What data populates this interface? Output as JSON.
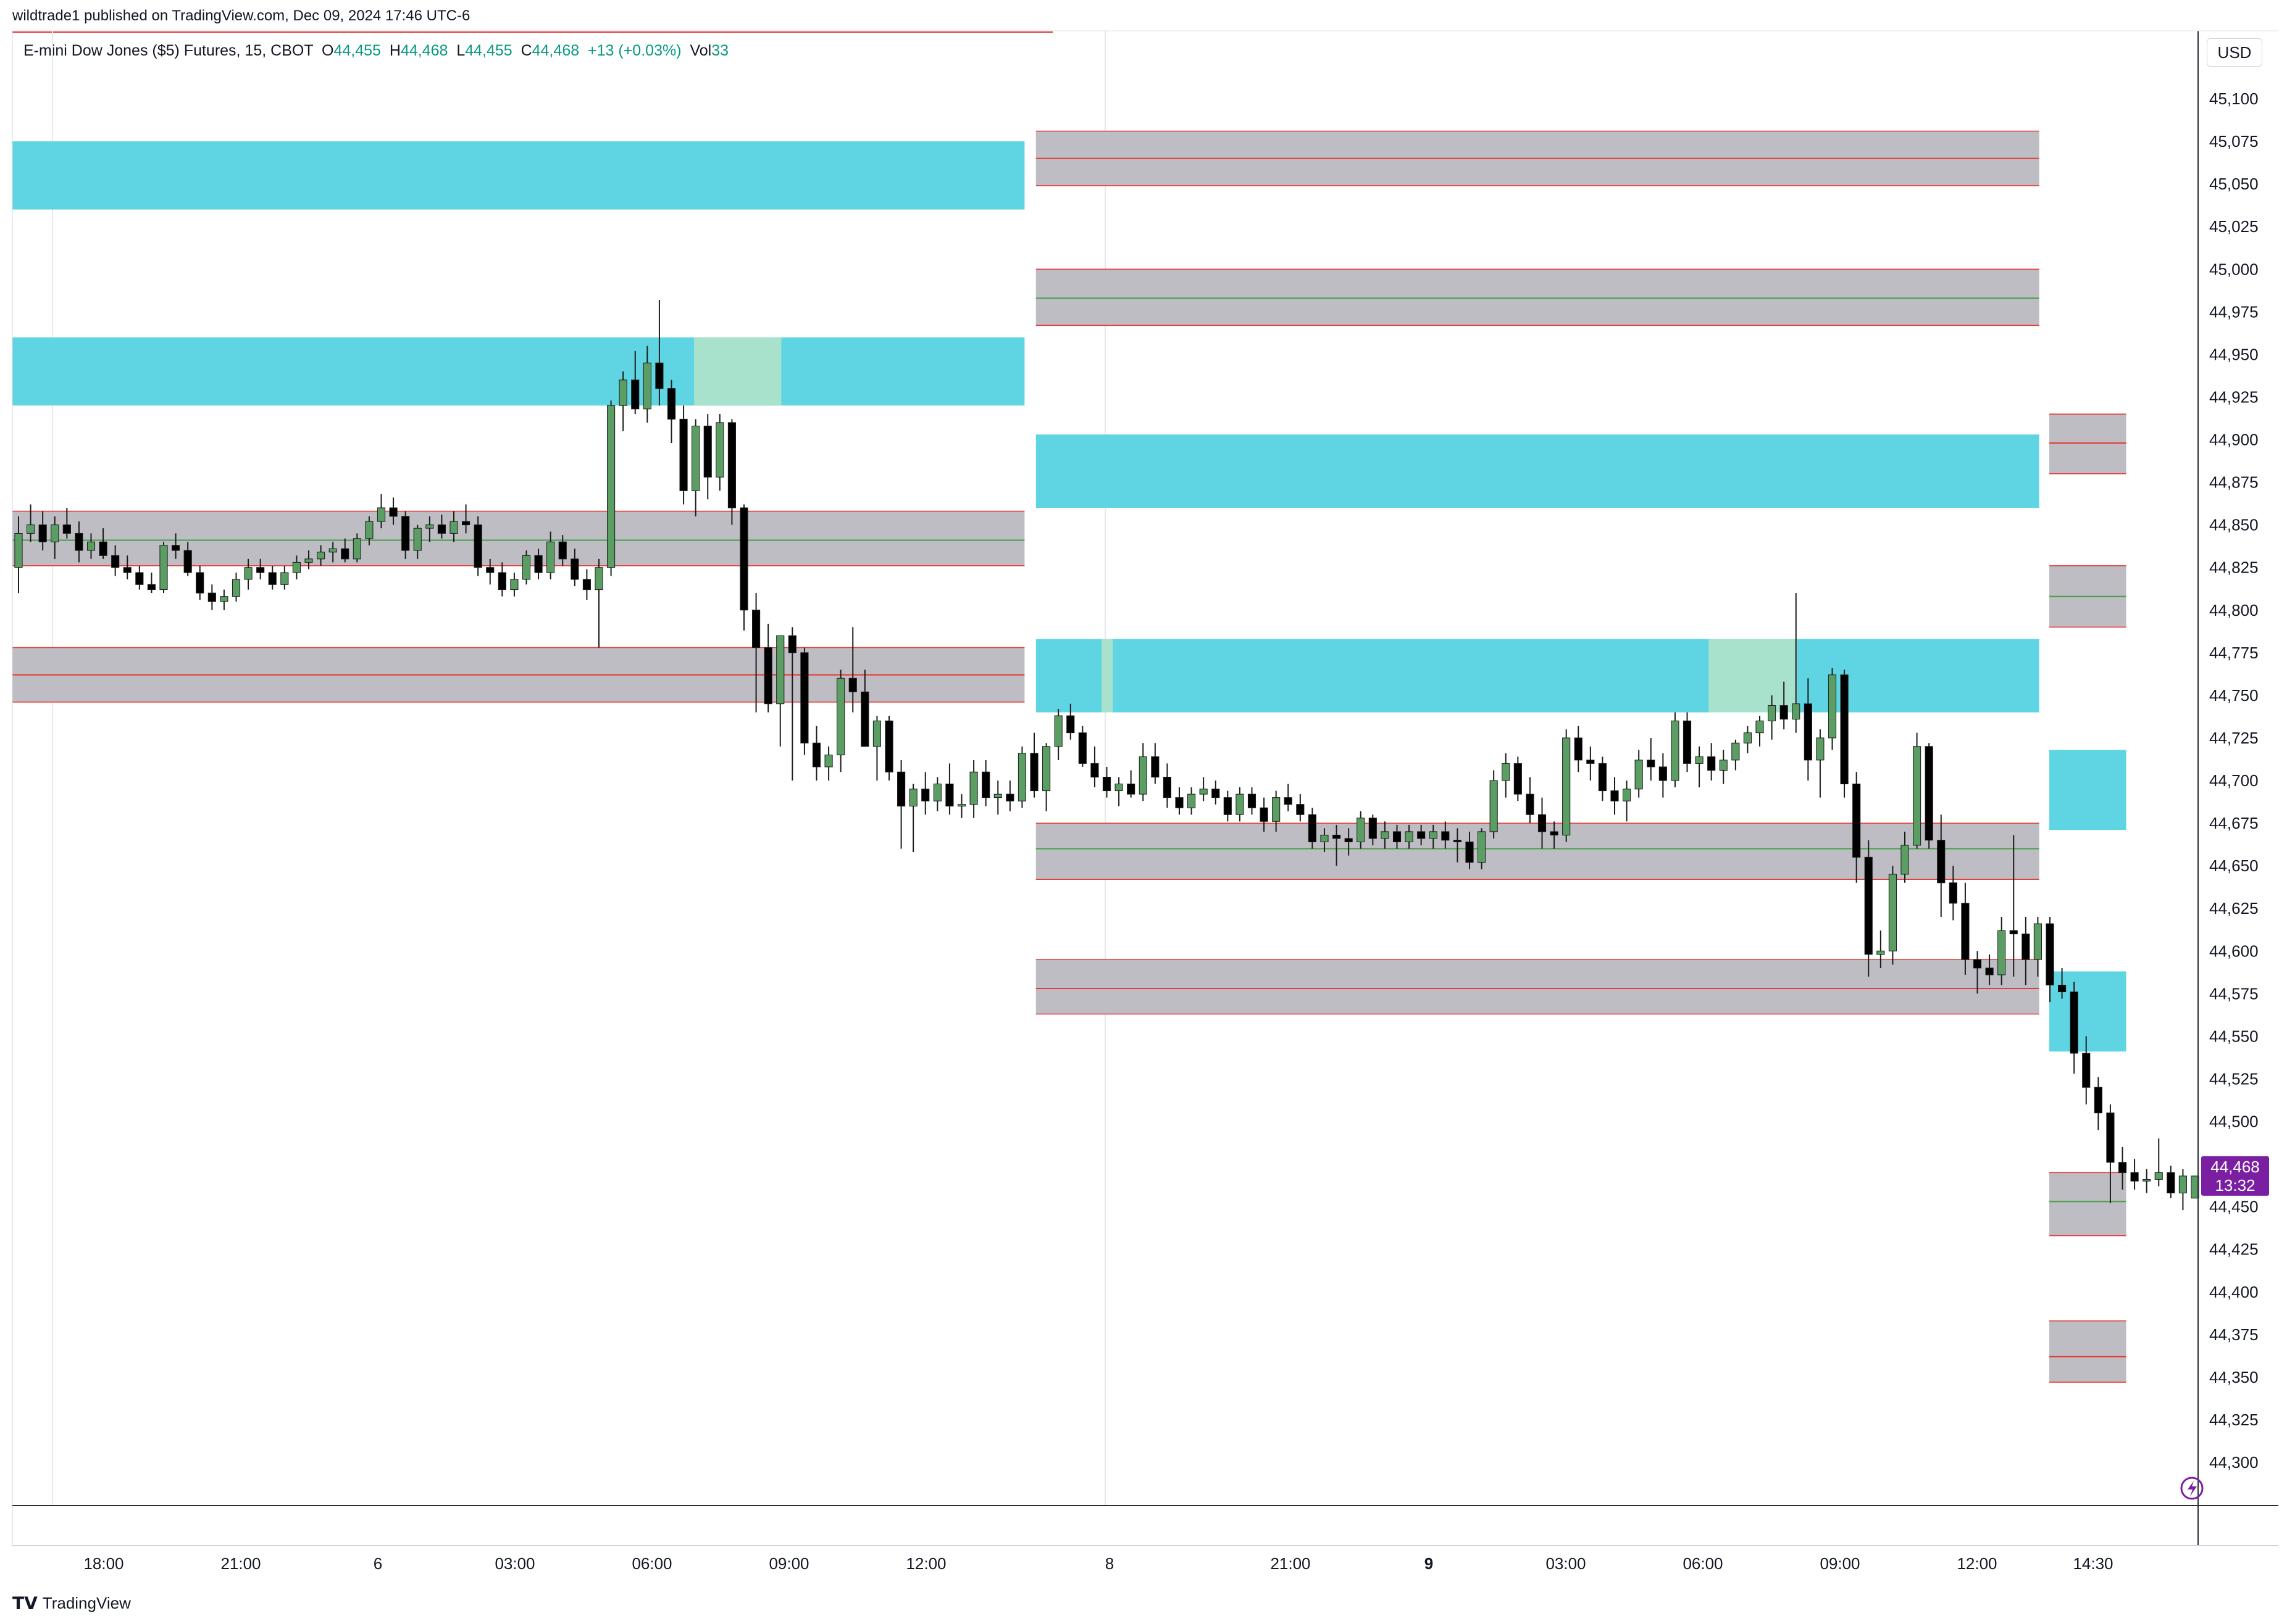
{
  "header": {
    "published": "wildtrade1 published on TradingView.com, Dec 09, 2024 17:46 UTC-6",
    "symbol": "E-mini Dow Jones ($5) Futures, 15, CBOT",
    "o_label": "O",
    "o_value": "44,455",
    "h_label": "H",
    "h_value": "44,468",
    "l_label": "L",
    "l_value": "44,455",
    "c_label": "C",
    "c_value": "44,468",
    "change": "+13 (+0.03%)",
    "vol_label": "Vol",
    "vol_value": "33"
  },
  "currency_button": "USD",
  "price_badge": {
    "price": "44,468",
    "countdown": "13:32",
    "color": "#7b1fa2"
  },
  "footer": {
    "brand": "TradingView"
  },
  "colors": {
    "up": "#5b9e63",
    "down": "#000000",
    "cyan_zone": "#5fd5e3",
    "gray_zone": "#bdbdc3",
    "red_line": "#e53935",
    "green_line": "#43a047",
    "highlight": "#a8e2cc"
  },
  "chart_data": {
    "type": "candlestick",
    "symbol": "E-mini Dow Jones ($5) Futures",
    "interval": "15",
    "ylim": [
      44275,
      45125
    ],
    "y_ticks": [
      "45,100",
      "45,075",
      "45,050",
      "45,025",
      "45,000",
      "44,975",
      "44,950",
      "44,925",
      "44,900",
      "44,875",
      "44,850",
      "44,825",
      "44,800",
      "44,775",
      "44,750",
      "44,725",
      "44,700",
      "44,675",
      "44,650",
      "44,625",
      "44,600",
      "44,575",
      "44,550",
      "44,525",
      "44,500",
      "44,475",
      "44,450",
      "44,425",
      "44,400",
      "44,375",
      "44,350",
      "44,325",
      "44,300"
    ],
    "x_ticks": [
      "18:00",
      "21:00",
      "6",
      "03:00",
      "06:00",
      "09:00",
      "12:00",
      "8",
      "21:00",
      "9",
      "03:00",
      "06:00",
      "09:00",
      "12:00",
      "14:30"
    ],
    "x_ticks_bold": [
      "9"
    ],
    "candles": [
      [
        44825,
        44855,
        44810,
        44845
      ],
      [
        44845,
        44862,
        44840,
        44850
      ],
      [
        44850,
        44858,
        44835,
        44840
      ],
      [
        44840,
        44855,
        44830,
        44850
      ],
      [
        44850,
        44860,
        44842,
        44845
      ],
      [
        44845,
        44852,
        44828,
        44835
      ],
      [
        44835,
        44845,
        44830,
        44840
      ],
      [
        44840,
        44848,
        44830,
        44832
      ],
      [
        44832,
        44838,
        44820,
        44825
      ],
      [
        44825,
        44832,
        44818,
        44822
      ],
      [
        44822,
        44826,
        44812,
        44815
      ],
      [
        44815,
        44822,
        44810,
        44812
      ],
      [
        44812,
        44840,
        44810,
        44838
      ],
      [
        44838,
        44845,
        44830,
        44835
      ],
      [
        44835,
        44840,
        44820,
        44822
      ],
      [
        44822,
        44826,
        44806,
        44810
      ],
      [
        44810,
        44815,
        44800,
        44805
      ],
      [
        44805,
        44812,
        44800,
        44808
      ],
      [
        44808,
        44822,
        44805,
        44818
      ],
      [
        44818,
        44830,
        44812,
        44825
      ],
      [
        44825,
        44830,
        44818,
        44822
      ],
      [
        44822,
        44826,
        44812,
        44815
      ],
      [
        44815,
        44826,
        44812,
        44822
      ],
      [
        44822,
        44832,
        44818,
        44828
      ],
      [
        44828,
        44835,
        44824,
        44830
      ],
      [
        44830,
        44838,
        44826,
        44834
      ],
      [
        44834,
        44840,
        44828,
        44836
      ],
      [
        44836,
        44842,
        44828,
        44830
      ],
      [
        44830,
        44845,
        44828,
        44842
      ],
      [
        44842,
        44855,
        44838,
        44852
      ],
      [
        44852,
        44868,
        44848,
        44860
      ],
      [
        44860,
        44866,
        44850,
        44855
      ],
      [
        44855,
        44858,
        44830,
        44835
      ],
      [
        44835,
        44850,
        44830,
        44848
      ],
      [
        44848,
        44855,
        44840,
        44850
      ],
      [
        44850,
        44856,
        44842,
        44845
      ],
      [
        44845,
        44858,
        44840,
        44852
      ],
      [
        44852,
        44862,
        44845,
        44850
      ],
      [
        44850,
        44855,
        44820,
        44825
      ],
      [
        44825,
        44830,
        44815,
        44822
      ],
      [
        44822,
        44828,
        44808,
        44812
      ],
      [
        44812,
        44822,
        44808,
        44818
      ],
      [
        44818,
        44835,
        44815,
        44832
      ],
      [
        44832,
        44836,
        44818,
        44822
      ],
      [
        44822,
        44846,
        44818,
        44840
      ],
      [
        44840,
        44844,
        44826,
        44830
      ],
      [
        44830,
        44836,
        44814,
        44818
      ],
      [
        44818,
        44824,
        44806,
        44812
      ],
      [
        44812,
        44830,
        44778,
        44825
      ],
      [
        44825,
        44923,
        44820,
        44920
      ],
      [
        44920,
        44940,
        44905,
        44935
      ],
      [
        44935,
        44952,
        44915,
        44918
      ],
      [
        44918,
        44955,
        44910,
        44945
      ],
      [
        44945,
        44982,
        44920,
        44930
      ],
      [
        44930,
        44935,
        44898,
        44912
      ],
      [
        44912,
        44920,
        44862,
        44870
      ],
      [
        44870,
        44912,
        44855,
        44908
      ],
      [
        44908,
        44915,
        44865,
        44878
      ],
      [
        44878,
        44915,
        44870,
        44910
      ],
      [
        44910,
        44912,
        44850,
        44860
      ],
      [
        44860,
        44862,
        44788,
        44800
      ],
      [
        44800,
        44810,
        44740,
        44778
      ],
      [
        44778,
        44792,
        44740,
        44745
      ],
      [
        44745,
        44782,
        44720,
        44785
      ],
      [
        44785,
        44790,
        44700,
        44775
      ],
      [
        44775,
        44778,
        44715,
        44722
      ],
      [
        44722,
        44732,
        44700,
        44708
      ],
      [
        44708,
        44720,
        44700,
        44715
      ],
      [
        44715,
        44765,
        44705,
        44760
      ],
      [
        44760,
        44790,
        44740,
        44752
      ],
      [
        44752,
        44765,
        44720,
        44720
      ],
      [
        44720,
        44738,
        44700,
        44735
      ],
      [
        44735,
        44738,
        44700,
        44705
      ],
      [
        44705,
        44712,
        44660,
        44685
      ],
      [
        44685,
        44698,
        44658,
        44695
      ],
      [
        44695,
        44705,
        44680,
        44688
      ],
      [
        44688,
        44702,
        44682,
        44698
      ],
      [
        44698,
        44710,
        44680,
        44685
      ],
      [
        44685,
        44692,
        44678,
        44686
      ],
      [
        44686,
        44712,
        44678,
        44705
      ],
      [
        44705,
        44712,
        44685,
        44690
      ],
      [
        44690,
        44700,
        44680,
        44692
      ],
      [
        44692,
        44700,
        44682,
        44688
      ],
      [
        44688,
        44720,
        44684,
        44716
      ],
      [
        44716,
        44728,
        44690,
        44694
      ],
      [
        44694,
        44722,
        44682,
        44720
      ],
      [
        44720,
        44742,
        44712,
        44738
      ],
      [
        44738,
        44745,
        44724,
        44728
      ],
      [
        44728,
        44732,
        44708,
        44710
      ],
      [
        44710,
        44720,
        44696,
        44702
      ],
      [
        44702,
        44708,
        44690,
        44694
      ],
      [
        44694,
        44702,
        44685,
        44698
      ],
      [
        44698,
        44706,
        44690,
        44692
      ],
      [
        44692,
        44722,
        44688,
        44714
      ],
      [
        44714,
        44722,
        44698,
        44702
      ],
      [
        44702,
        44710,
        44684,
        44690
      ],
      [
        44690,
        44696,
        44680,
        44684
      ],
      [
        44684,
        44696,
        44680,
        44692
      ],
      [
        44692,
        44702,
        44688,
        44695
      ],
      [
        44695,
        44700,
        44686,
        44690
      ],
      [
        44690,
        44694,
        44676,
        44680
      ],
      [
        44680,
        44696,
        44676,
        44692
      ],
      [
        44692,
        44696,
        44680,
        44684
      ],
      [
        44684,
        44690,
        44670,
        44676
      ],
      [
        44676,
        44694,
        44670,
        44690
      ],
      [
        44690,
        44698,
        44682,
        44686
      ],
      [
        44686,
        44692,
        44676,
        44680
      ],
      [
        44680,
        44684,
        44660,
        44664
      ],
      [
        44664,
        44672,
        44658,
        44668
      ],
      [
        44668,
        44674,
        44650,
        44666
      ],
      [
        44666,
        44672,
        44656,
        44664
      ],
      [
        44664,
        44682,
        44660,
        44678
      ],
      [
        44678,
        44680,
        44662,
        44666
      ],
      [
        44666,
        44676,
        44660,
        44670
      ],
      [
        44670,
        44674,
        44660,
        44664
      ],
      [
        44664,
        44674,
        44660,
        44670
      ],
      [
        44670,
        44674,
        44662,
        44666
      ],
      [
        44666,
        44674,
        44660,
        44670
      ],
      [
        44670,
        44676,
        44660,
        44665
      ],
      [
        44665,
        44672,
        44652,
        44664
      ],
      [
        44664,
        44670,
        44648,
        44652
      ],
      [
        44652,
        44672,
        44648,
        44670
      ],
      [
        44670,
        44706,
        44666,
        44700
      ],
      [
        44700,
        44716,
        44690,
        44710
      ],
      [
        44710,
        44714,
        44688,
        44692
      ],
      [
        44692,
        44702,
        44675,
        44680
      ],
      [
        44680,
        44690,
        44660,
        44670
      ],
      [
        44670,
        44676,
        44660,
        44668
      ],
      [
        44668,
        44730,
        44664,
        44725
      ],
      [
        44725,
        44732,
        44705,
        44712
      ],
      [
        44712,
        44720,
        44700,
        44710
      ],
      [
        44710,
        44714,
        44688,
        44694
      ],
      [
        44694,
        44702,
        44680,
        44688
      ],
      [
        44688,
        44700,
        44676,
        44695
      ],
      [
        44695,
        44718,
        44690,
        44712
      ],
      [
        44712,
        44725,
        44700,
        44708
      ],
      [
        44708,
        44716,
        44690,
        44700
      ],
      [
        44700,
        44740,
        44696,
        44735
      ],
      [
        44735,
        44740,
        44705,
        44710
      ],
      [
        44710,
        44720,
        44696,
        44714
      ],
      [
        44714,
        44722,
        44700,
        44706
      ],
      [
        44706,
        44718,
        44698,
        44712
      ],
      [
        44712,
        44724,
        44706,
        44722
      ],
      [
        44722,
        44732,
        44716,
        44728
      ],
      [
        44728,
        44738,
        44720,
        44735
      ],
      [
        44735,
        44750,
        44724,
        44744
      ],
      [
        44744,
        44758,
        44730,
        44736
      ],
      [
        44736,
        44810,
        44728,
        44745
      ],
      [
        44745,
        44760,
        44700,
        44712
      ],
      [
        44712,
        44730,
        44690,
        44725
      ],
      [
        44725,
        44766,
        44718,
        44762
      ],
      [
        44762,
        44765,
        44690,
        44698
      ],
      [
        44698,
        44705,
        44640,
        44655
      ],
      [
        44655,
        44665,
        44585,
        44598
      ],
      [
        44598,
        44612,
        44590,
        44600
      ],
      [
        44600,
        44650,
        44592,
        44645
      ],
      [
        44645,
        44670,
        44640,
        44662
      ],
      [
        44662,
        44728,
        44660,
        44720
      ],
      [
        44720,
        44722,
        44660,
        44665
      ],
      [
        44665,
        44680,
        44620,
        44640
      ],
      [
        44640,
        44650,
        44618,
        44628
      ],
      [
        44628,
        44640,
        44586,
        44595
      ],
      [
        44595,
        44600,
        44575,
        44590
      ],
      [
        44590,
        44598,
        44580,
        44586
      ],
      [
        44586,
        44620,
        44580,
        44612
      ],
      [
        44612,
        44668,
        44585,
        44610
      ],
      [
        44610,
        44620,
        44580,
        44595
      ],
      [
        44595,
        44620,
        44585,
        44616
      ],
      [
        44616,
        44620,
        44570,
        44580
      ],
      [
        44580,
        44590,
        44572,
        44576
      ],
      [
        44576,
        44582,
        44528,
        44540
      ],
      [
        44540,
        44550,
        44510,
        44520
      ],
      [
        44520,
        44526,
        44495,
        44505
      ],
      [
        44505,
        44510,
        44452,
        44476
      ],
      [
        44476,
        44485,
        44460,
        44470
      ],
      [
        44470,
        44478,
        44460,
        44465
      ],
      [
        44465,
        44472,
        44458,
        44466
      ],
      [
        44466,
        44490,
        44462,
        44470
      ],
      [
        44470,
        44474,
        44455,
        44458
      ],
      [
        44458,
        44472,
        44448,
        44468
      ],
      [
        44455,
        44468,
        44455,
        44468
      ]
    ],
    "zones": [
      {
        "kind": "cyan",
        "from": 0,
        "to": 0.4631,
        "low": 45035,
        "high": 45075
      },
      {
        "kind": "cyan",
        "from": 0,
        "to": 0.4631,
        "low": 44920,
        "high": 44960
      },
      {
        "kind": "gray",
        "from": 0,
        "to": 0.4631,
        "low": 44826,
        "high": 44858,
        "mid": 44841,
        "mid_color": "green"
      },
      {
        "kind": "gray",
        "from": 0,
        "to": 0.4631,
        "low": 44746,
        "high": 44778,
        "mid": 44762,
        "mid_color": "red"
      },
      {
        "kind": "gray",
        "from": 0.4683,
        "to": 0.9273,
        "low": 45049,
        "high": 45081,
        "mid": 45065,
        "mid_color": "red"
      },
      {
        "kind": "gray",
        "from": 0.4683,
        "to": 0.9273,
        "low": 44967,
        "high": 45000,
        "mid": 44983,
        "mid_color": "green"
      },
      {
        "kind": "cyan",
        "from": 0.4683,
        "to": 0.9273,
        "low": 44860,
        "high": 44903
      },
      {
        "kind": "cyan",
        "from": 0.4683,
        "to": 0.9273,
        "low": 44740,
        "high": 44783
      },
      {
        "kind": "gray",
        "from": 0.4683,
        "to": 0.9273,
        "low": 44642,
        "high": 44675,
        "mid": 44660,
        "mid_color": "green"
      },
      {
        "kind": "gray",
        "from": 0.4683,
        "to": 0.9273,
        "low": 44563,
        "high": 44595,
        "mid": 44578,
        "mid_color": "red"
      },
      {
        "kind": "gray",
        "from": 0.9319,
        "to": 0.9671,
        "low": 44880,
        "high": 44915,
        "mid": 44898,
        "mid_color": "red"
      },
      {
        "kind": "gray",
        "from": 0.9319,
        "to": 0.9671,
        "low": 44790,
        "high": 44826,
        "mid": 44808,
        "mid_color": "green"
      },
      {
        "kind": "cyan",
        "from": 0.9319,
        "to": 0.9671,
        "low": 44671,
        "high": 44718
      },
      {
        "kind": "cyan",
        "from": 0.9319,
        "to": 0.9671,
        "low": 44541,
        "high": 44588
      },
      {
        "kind": "gray",
        "from": 0.9319,
        "to": 0.9671,
        "low": 44433,
        "high": 44470,
        "mid": 44453,
        "mid_color": "green"
      },
      {
        "kind": "gray",
        "from": 0.9319,
        "to": 0.9671,
        "low": 44347,
        "high": 44383,
        "mid": 44362,
        "mid_color": "red"
      }
    ],
    "highlights": [
      {
        "from": 0.3119,
        "to": 0.3518,
        "low": 44920,
        "high": 44960
      },
      {
        "from": 0.4983,
        "to": 0.5034,
        "low": 44740,
        "high": 44783
      },
      {
        "from": 0.7761,
        "to": 0.8166,
        "low": 44740,
        "high": 44783
      }
    ],
    "last_price": 44468
  }
}
